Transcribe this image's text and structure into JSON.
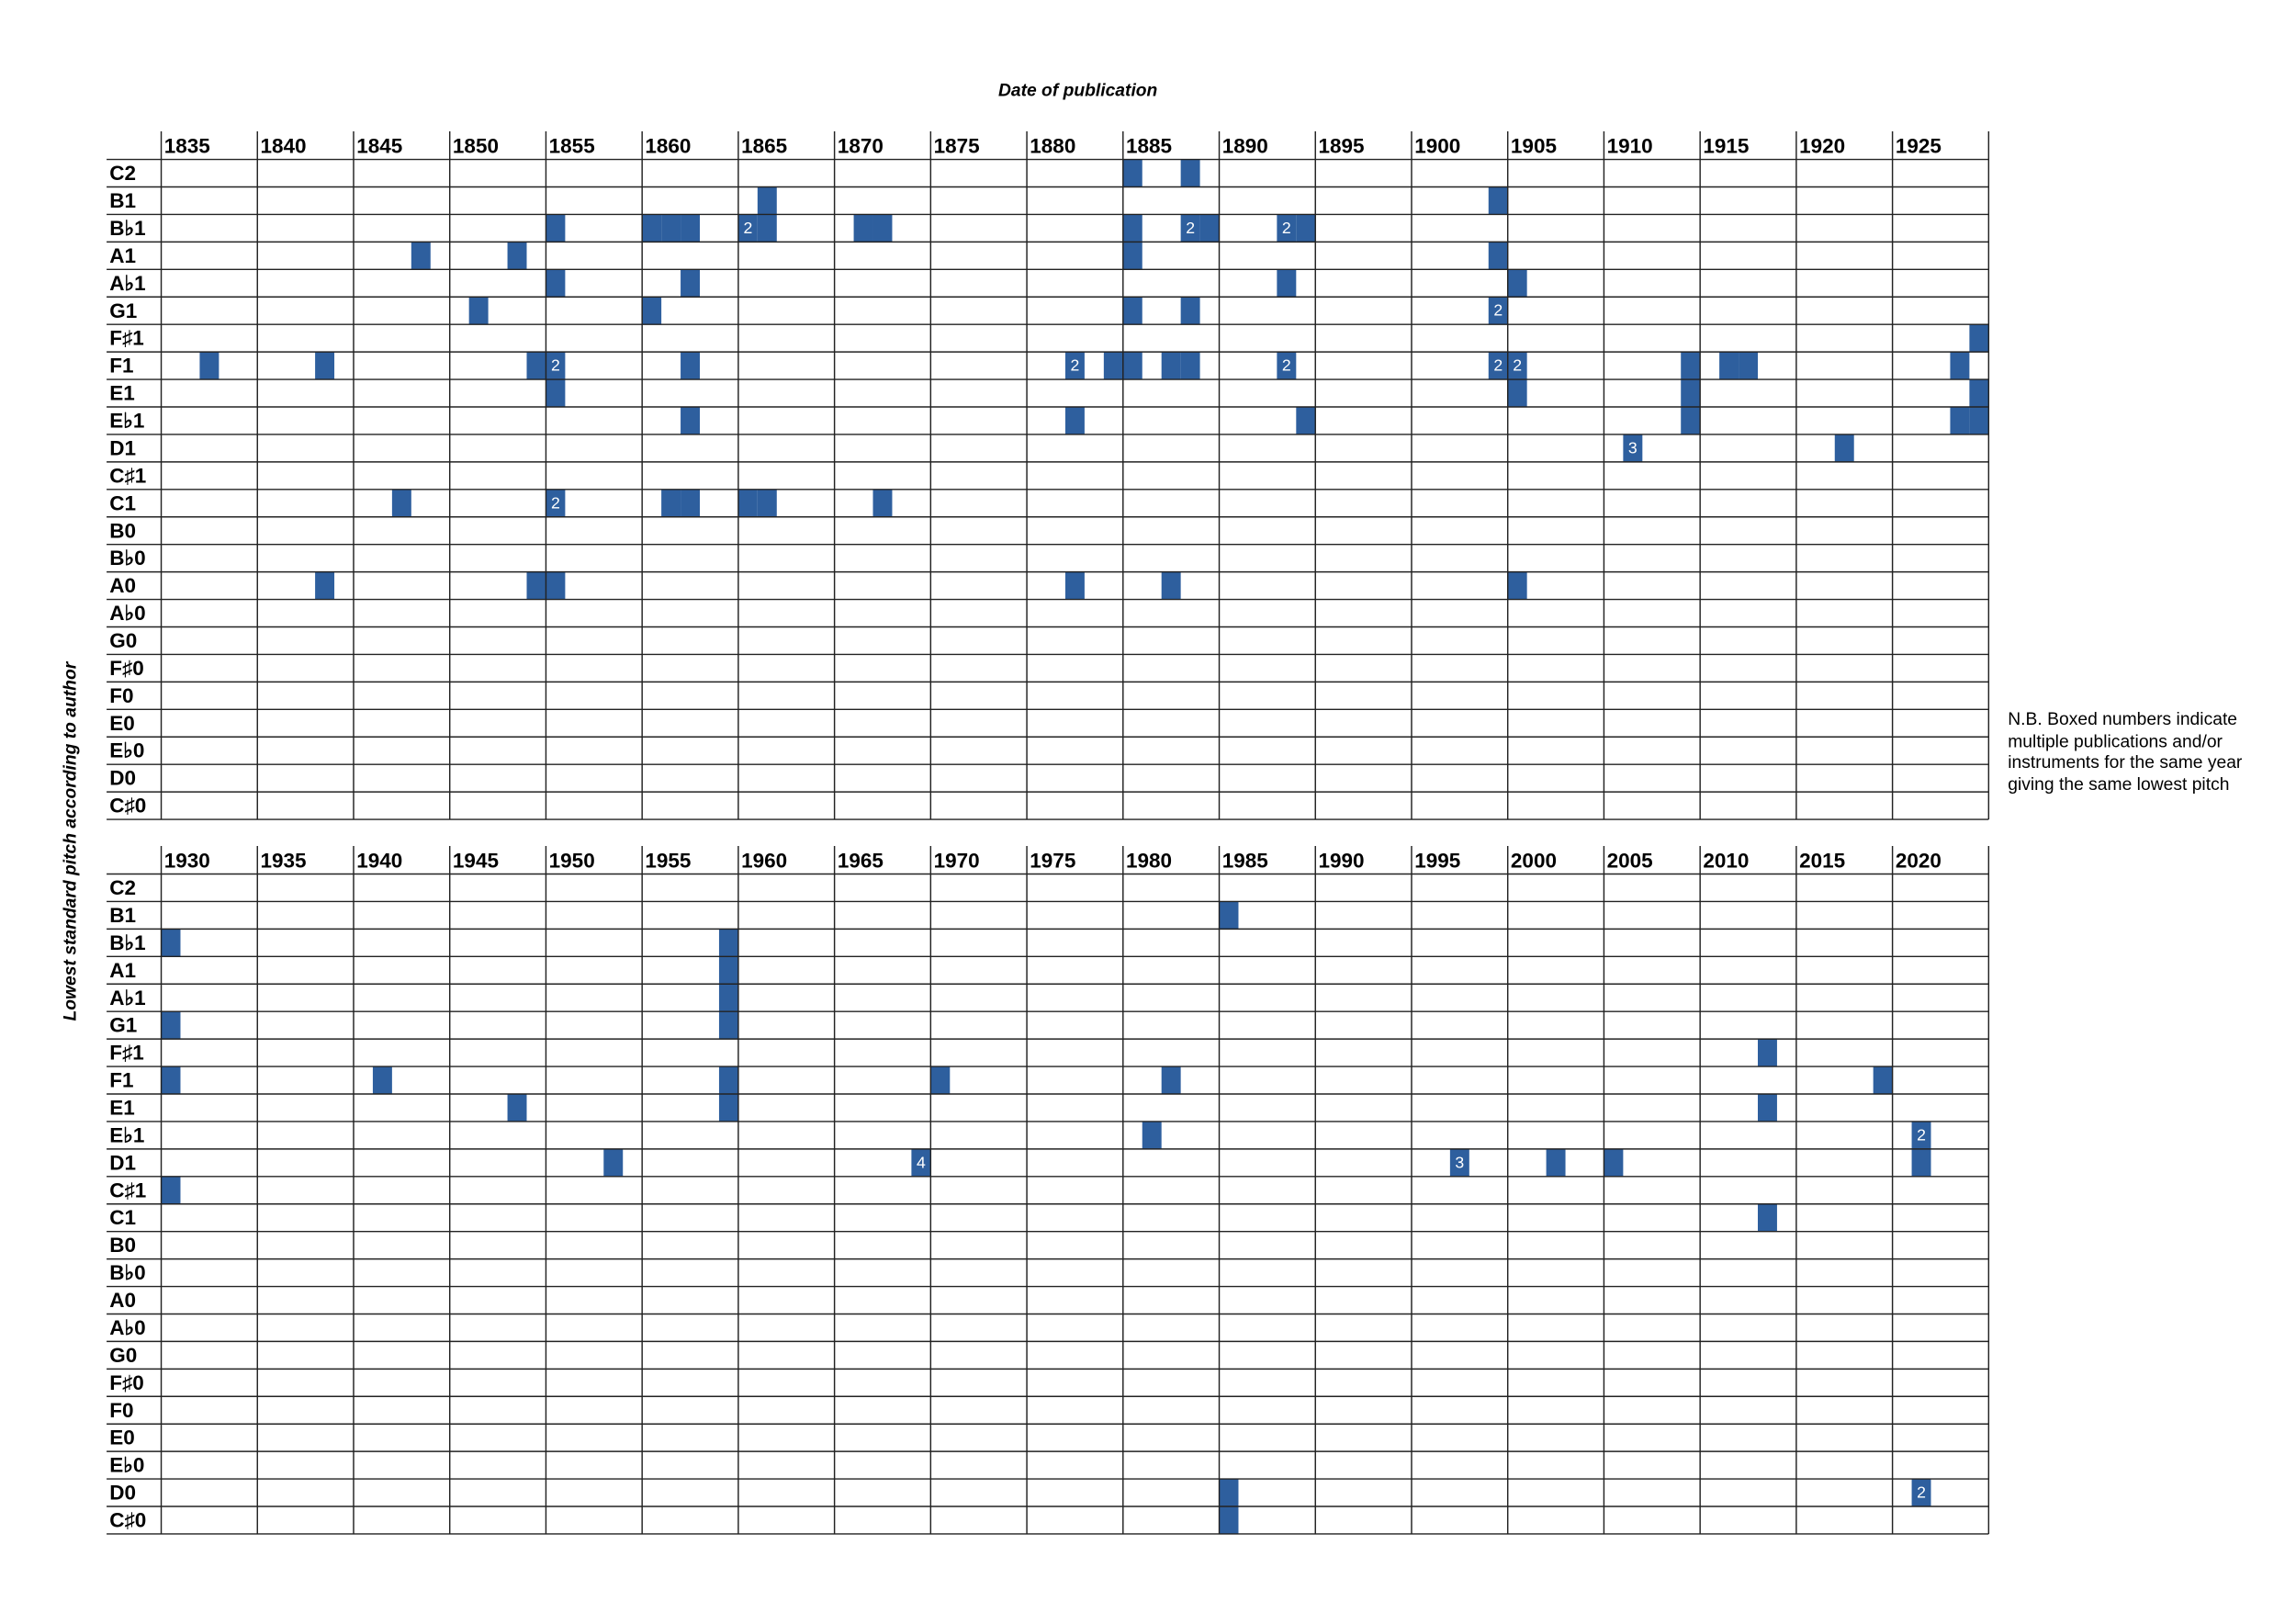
{
  "x_label": "Date of publication",
  "y_label": "Lowest standard pitch according to author",
  "note": "N.B. Boxed numbers indicate multiple publications and/or instruments for the same year giving the same lowest pitch",
  "chart_data": [
    {
      "type": "grid",
      "color": "#2e5f9e",
      "categories": [
        "C2",
        "B1",
        "B♭1",
        "A1",
        "A♭1",
        "G1",
        "F♯1",
        "F1",
        "E1",
        "E♭1",
        "D1",
        "C♯1",
        "C1",
        "B0",
        "B♭0",
        "A0",
        "A♭0",
        "G0",
        "F♯0",
        "F0",
        "E0",
        "E♭0",
        "D0",
        "C♯0"
      ],
      "xlim": [
        1835,
        1930
      ],
      "xticks": [
        1835,
        1840,
        1845,
        1850,
        1855,
        1860,
        1865,
        1870,
        1875,
        1880,
        1885,
        1890,
        1895,
        1900,
        1905,
        1910,
        1915,
        1920,
        1925
      ],
      "points": [
        {
          "x": 1885,
          "y": "C2"
        },
        {
          "x": 1888,
          "y": "C2"
        },
        {
          "x": 1866,
          "y": "B1"
        },
        {
          "x": 1904,
          "y": "B1"
        },
        {
          "x": 1855,
          "y": "B♭1"
        },
        {
          "x": 1860,
          "y": "B♭1"
        },
        {
          "x": 1861,
          "y": "B♭1"
        },
        {
          "x": 1862,
          "y": "B♭1"
        },
        {
          "x": 1865,
          "y": "B♭1",
          "count": 2
        },
        {
          "x": 1866,
          "y": "B♭1"
        },
        {
          "x": 1871,
          "y": "B♭1"
        },
        {
          "x": 1872,
          "y": "B♭1"
        },
        {
          "x": 1885,
          "y": "B♭1"
        },
        {
          "x": 1888,
          "y": "B♭1",
          "count": 2
        },
        {
          "x": 1889,
          "y": "B♭1"
        },
        {
          "x": 1893,
          "y": "B♭1",
          "count": 2
        },
        {
          "x": 1894,
          "y": "B♭1"
        },
        {
          "x": 1848,
          "y": "A1"
        },
        {
          "x": 1853,
          "y": "A1"
        },
        {
          "x": 1885,
          "y": "A1"
        },
        {
          "x": 1904,
          "y": "A1"
        },
        {
          "x": 1855,
          "y": "A♭1"
        },
        {
          "x": 1862,
          "y": "A♭1"
        },
        {
          "x": 1893,
          "y": "A♭1"
        },
        {
          "x": 1905,
          "y": "A♭1"
        },
        {
          "x": 1851,
          "y": "G1"
        },
        {
          "x": 1860,
          "y": "G1"
        },
        {
          "x": 1885,
          "y": "G1"
        },
        {
          "x": 1888,
          "y": "G1"
        },
        {
          "x": 1904,
          "y": "G1",
          "count": 2
        },
        {
          "x": 1929,
          "y": "F♯1"
        },
        {
          "x": 1837,
          "y": "F1"
        },
        {
          "x": 1843,
          "y": "F1"
        },
        {
          "x": 1854,
          "y": "F1"
        },
        {
          "x": 1855,
          "y": "F1",
          "count": 2
        },
        {
          "x": 1862,
          "y": "F1"
        },
        {
          "x": 1882,
          "y": "F1",
          "count": 2
        },
        {
          "x": 1884,
          "y": "F1"
        },
        {
          "x": 1885,
          "y": "F1"
        },
        {
          "x": 1887,
          "y": "F1"
        },
        {
          "x": 1888,
          "y": "F1"
        },
        {
          "x": 1893,
          "y": "F1",
          "count": 2
        },
        {
          "x": 1904,
          "y": "F1",
          "count": 2
        },
        {
          "x": 1905,
          "y": "F1",
          "count": 2
        },
        {
          "x": 1914,
          "y": "F1"
        },
        {
          "x": 1916,
          "y": "F1"
        },
        {
          "x": 1917,
          "y": "F1"
        },
        {
          "x": 1928,
          "y": "F1"
        },
        {
          "x": 1855,
          "y": "E1"
        },
        {
          "x": 1905,
          "y": "E1"
        },
        {
          "x": 1914,
          "y": "E1"
        },
        {
          "x": 1929,
          "y": "E1"
        },
        {
          "x": 1862,
          "y": "E♭1"
        },
        {
          "x": 1882,
          "y": "E♭1"
        },
        {
          "x": 1894,
          "y": "E♭1"
        },
        {
          "x": 1914,
          "y": "E♭1"
        },
        {
          "x": 1928,
          "y": "E♭1"
        },
        {
          "x": 1929,
          "y": "E♭1"
        },
        {
          "x": 1911,
          "y": "D1",
          "count": 3
        },
        {
          "x": 1922,
          "y": "D1"
        },
        {
          "x": 1847,
          "y": "C1"
        },
        {
          "x": 1855,
          "y": "C1",
          "count": 2
        },
        {
          "x": 1861,
          "y": "C1"
        },
        {
          "x": 1862,
          "y": "C1"
        },
        {
          "x": 1865,
          "y": "C1"
        },
        {
          "x": 1866,
          "y": "C1"
        },
        {
          "x": 1872,
          "y": "C1"
        },
        {
          "x": 1843,
          "y": "A0"
        },
        {
          "x": 1854,
          "y": "A0"
        },
        {
          "x": 1855,
          "y": "A0"
        },
        {
          "x": 1882,
          "y": "A0"
        },
        {
          "x": 1887,
          "y": "A0"
        },
        {
          "x": 1905,
          "y": "A0"
        }
      ]
    },
    {
      "type": "grid",
      "color": "#2e5f9e",
      "categories": [
        "C2",
        "B1",
        "B♭1",
        "A1",
        "A♭1",
        "G1",
        "F♯1",
        "F1",
        "E1",
        "E♭1",
        "D1",
        "C♯1",
        "C1",
        "B0",
        "B♭0",
        "A0",
        "A♭0",
        "G0",
        "F♯0",
        "F0",
        "E0",
        "E♭0",
        "D0",
        "C♯0"
      ],
      "xlim": [
        1930,
        2025
      ],
      "xticks": [
        1930,
        1935,
        1940,
        1945,
        1950,
        1955,
        1960,
        1965,
        1970,
        1975,
        1980,
        1985,
        1990,
        1995,
        2000,
        2005,
        2010,
        2015,
        2020
      ],
      "points": [
        {
          "x": 1985,
          "y": "B1"
        },
        {
          "x": 1930,
          "y": "B♭1"
        },
        {
          "x": 1959,
          "y": "B♭1"
        },
        {
          "x": 1959,
          "y": "A1"
        },
        {
          "x": 1959,
          "y": "A♭1"
        },
        {
          "x": 1930,
          "y": "G1"
        },
        {
          "x": 1959,
          "y": "G1"
        },
        {
          "x": 2013,
          "y": "F♯1"
        },
        {
          "x": 1930,
          "y": "F1"
        },
        {
          "x": 1941,
          "y": "F1"
        },
        {
          "x": 1959,
          "y": "F1"
        },
        {
          "x": 1970,
          "y": "F1"
        },
        {
          "x": 1982,
          "y": "F1"
        },
        {
          "x": 2019,
          "y": "F1"
        },
        {
          "x": 1948,
          "y": "E1"
        },
        {
          "x": 1959,
          "y": "E1"
        },
        {
          "x": 2013,
          "y": "E1"
        },
        {
          "x": 1981,
          "y": "E♭1"
        },
        {
          "x": 2021,
          "y": "E♭1",
          "count": 2
        },
        {
          "x": 1953,
          "y": "D1"
        },
        {
          "x": 1969,
          "y": "D1",
          "count": 4
        },
        {
          "x": 1997,
          "y": "D1",
          "count": 3
        },
        {
          "x": 2002,
          "y": "D1"
        },
        {
          "x": 2005,
          "y": "D1"
        },
        {
          "x": 2021,
          "y": "D1"
        },
        {
          "x": 1930,
          "y": "C♯1"
        },
        {
          "x": 2013,
          "y": "C1"
        },
        {
          "x": 1985,
          "y": "D0"
        },
        {
          "x": 2021,
          "y": "D0",
          "count": 2
        },
        {
          "x": 1985,
          "y": "C♯0"
        }
      ]
    }
  ]
}
